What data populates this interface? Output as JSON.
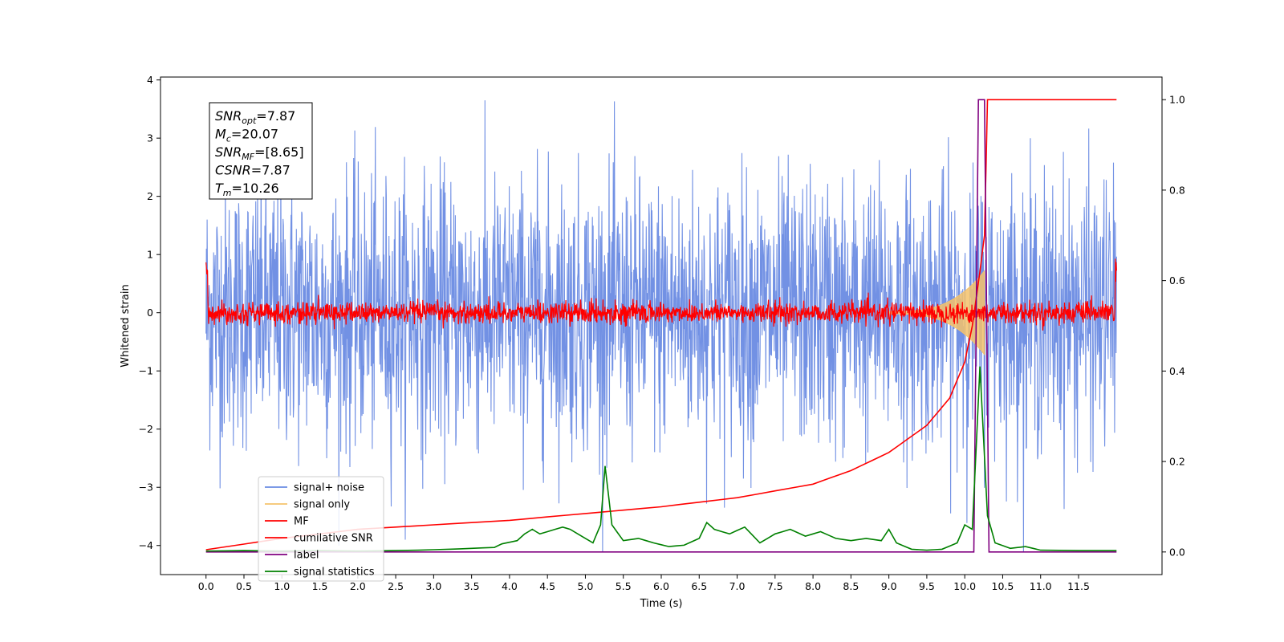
{
  "chart_data": {
    "type": "line",
    "xlabel": "Time (s)",
    "ylabel": "Whitened strain",
    "xlim": [
      -0.6,
      12.6
    ],
    "ylim": [
      -4.5,
      4.05
    ],
    "y2lim": [
      -0.05,
      1.05
    ],
    "grid": false,
    "legend_position": "lower-left",
    "x_ticks": [
      "0.0",
      "0.5",
      "1.0",
      "1.5",
      "2.0",
      "2.5",
      "3.0",
      "3.5",
      "4.0",
      "4.5",
      "5.0",
      "5.5",
      "6.0",
      "6.5",
      "7.0",
      "7.5",
      "8.0",
      "8.5",
      "9.0",
      "9.5",
      "10.0",
      "10.5",
      "11.0",
      "11.5"
    ],
    "y_ticks": [
      "4",
      "3",
      "2",
      "1",
      "0",
      "−1",
      "−2",
      "−3",
      "−4"
    ],
    "y2_ticks": [
      "1.0",
      "0.8",
      "0.6",
      "0.4",
      "0.2",
      "0.0"
    ],
    "annotation": {
      "snr_opt_label": "SNR",
      "snr_opt_sub": "opt",
      "snr_opt_value": "=7.87",
      "mc_label": "M",
      "mc_sub": "c",
      "mc_value": "=20.07",
      "snr_mf_label": "SNR",
      "snr_mf_sub": "MF",
      "snr_mf_value": "=[8.65]",
      "csnr_label": "CSNR",
      "csnr_value": "=7.87",
      "tm_label": "T",
      "tm_sub": "m",
      "tm_value": "=10.26"
    },
    "series": [
      {
        "name": "signal+ noise",
        "color": "#6a8be3",
        "axis": "left",
        "description_range": [
          -3.6,
          3.6
        ],
        "x_range": [
          0.0,
          12.0
        ]
      },
      {
        "name": "signal only",
        "color": "#f5c26b",
        "axis": "left",
        "peak_time": 10.26,
        "peak_amplitude": 0.7
      },
      {
        "name": "MF",
        "color": "#ff0000",
        "axis": "left",
        "x_range": [
          0.0,
          12.0
        ]
      },
      {
        "name": "cumilative SNR",
        "color": "#ff0000",
        "axis": "right",
        "points": [
          [
            0.0,
            0.005
          ],
          [
            1.0,
            0.03
          ],
          [
            2.0,
            0.05
          ],
          [
            3.0,
            0.06
          ],
          [
            4.0,
            0.07
          ],
          [
            5.0,
            0.085
          ],
          [
            6.0,
            0.1
          ],
          [
            7.0,
            0.12
          ],
          [
            8.0,
            0.15
          ],
          [
            8.5,
            0.18
          ],
          [
            9.0,
            0.22
          ],
          [
            9.5,
            0.28
          ],
          [
            9.8,
            0.34
          ],
          [
            10.0,
            0.42
          ],
          [
            10.1,
            0.5
          ],
          [
            10.2,
            0.62
          ],
          [
            10.26,
            0.7
          ],
          [
            10.3,
            1.0
          ],
          [
            12.0,
            1.0
          ]
        ]
      },
      {
        "name": "label",
        "color": "#800080",
        "axis": "right",
        "points": [
          [
            0.0,
            0.0
          ],
          [
            10.12,
            0.0
          ],
          [
            10.18,
            1.0
          ],
          [
            10.26,
            1.0
          ],
          [
            10.32,
            0.0
          ],
          [
            12.0,
            0.0
          ]
        ]
      },
      {
        "name": "signal statistics",
        "color": "#008000",
        "axis": "right",
        "points": [
          [
            0.0,
            0.002
          ],
          [
            0.5,
            0.003
          ],
          [
            1.0,
            0.002
          ],
          [
            1.5,
            0.003
          ],
          [
            2.0,
            0.002
          ],
          [
            2.5,
            0.003
          ],
          [
            2.8,
            0.004
          ],
          [
            3.2,
            0.006
          ],
          [
            3.5,
            0.008
          ],
          [
            3.8,
            0.01
          ],
          [
            3.9,
            0.018
          ],
          [
            4.1,
            0.025
          ],
          [
            4.2,
            0.04
          ],
          [
            4.3,
            0.05
          ],
          [
            4.4,
            0.04
          ],
          [
            4.5,
            0.045
          ],
          [
            4.7,
            0.055
          ],
          [
            4.8,
            0.05
          ],
          [
            5.0,
            0.03
          ],
          [
            5.1,
            0.02
          ],
          [
            5.2,
            0.06
          ],
          [
            5.26,
            0.19
          ],
          [
            5.35,
            0.06
          ],
          [
            5.5,
            0.025
          ],
          [
            5.7,
            0.03
          ],
          [
            5.9,
            0.02
          ],
          [
            6.1,
            0.012
          ],
          [
            6.3,
            0.015
          ],
          [
            6.5,
            0.03
          ],
          [
            6.6,
            0.065
          ],
          [
            6.7,
            0.05
          ],
          [
            6.9,
            0.04
          ],
          [
            7.1,
            0.055
          ],
          [
            7.3,
            0.02
          ],
          [
            7.5,
            0.04
          ],
          [
            7.7,
            0.05
          ],
          [
            7.9,
            0.035
          ],
          [
            8.1,
            0.045
          ],
          [
            8.3,
            0.03
          ],
          [
            8.5,
            0.025
          ],
          [
            8.7,
            0.03
          ],
          [
            8.9,
            0.025
          ],
          [
            9.0,
            0.05
          ],
          [
            9.1,
            0.02
          ],
          [
            9.3,
            0.006
          ],
          [
            9.5,
            0.004
          ],
          [
            9.7,
            0.006
          ],
          [
            9.9,
            0.02
          ],
          [
            10.0,
            0.06
          ],
          [
            10.1,
            0.05
          ],
          [
            10.2,
            0.41
          ],
          [
            10.3,
            0.08
          ],
          [
            10.4,
            0.02
          ],
          [
            10.6,
            0.008
          ],
          [
            10.8,
            0.012
          ],
          [
            11.0,
            0.004
          ],
          [
            11.5,
            0.003
          ],
          [
            12.0,
            0.003
          ]
        ]
      }
    ]
  }
}
